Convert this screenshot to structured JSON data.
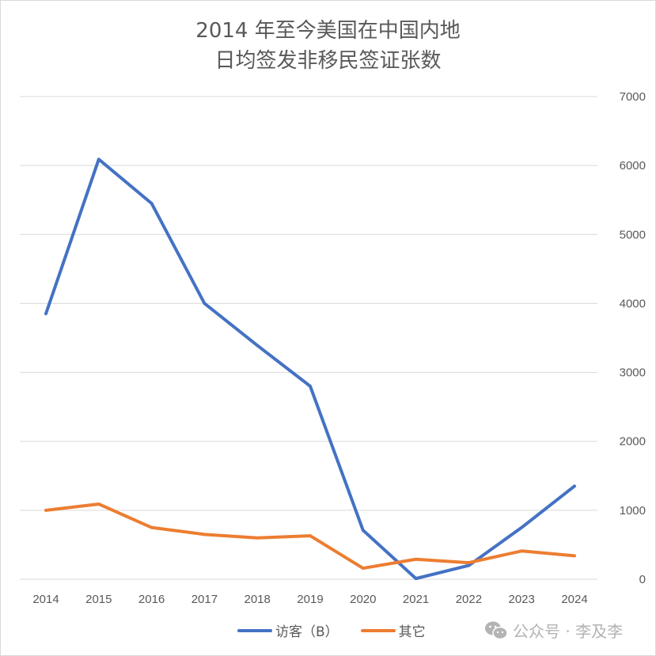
{
  "chart_data": {
    "type": "line",
    "title_line1": "2014 年至今美国在中国内地",
    "title_line2": "日均签发非移民签证张数",
    "categories": [
      "2014",
      "2015",
      "2016",
      "2017",
      "2018",
      "2019",
      "2020",
      "2021",
      "2022",
      "2023",
      "2024"
    ],
    "series": [
      {
        "name": "访客（B）",
        "color": "#4472c4",
        "values": [
          3850,
          6090,
          5450,
          4000,
          3390,
          2800,
          710,
          10,
          200,
          750,
          1350
        ]
      },
      {
        "name": "其它",
        "color": "#ed7d31",
        "values": [
          1000,
          1090,
          750,
          650,
          600,
          630,
          160,
          290,
          240,
          410,
          340
        ]
      }
    ],
    "ylim": [
      0,
      7000
    ],
    "yticks": [
      "0",
      "1000",
      "2000",
      "3000",
      "4000",
      "5000",
      "6000",
      "7000"
    ],
    "y_axis_side": "right",
    "grid": true,
    "legend_position": "bottom"
  },
  "watermark": {
    "text": "公众号 · 李及李",
    "icon": "wechat-icon"
  }
}
